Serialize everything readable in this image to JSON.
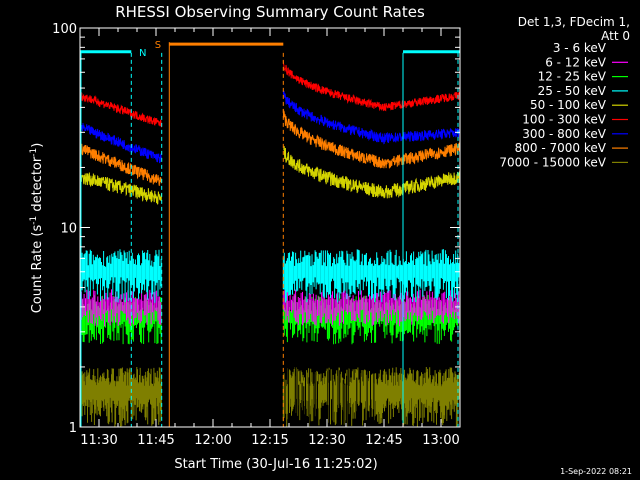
{
  "chart_data": {
    "type": "line",
    "title": "RHESSI Observing Summary Count Rates",
    "xlabel": "Start Time (30-Jul-16 11:25:02)",
    "ylabel_main": "Count Rate (s",
    "ylabel_sup": "-1",
    "ylabel_tail": " detector",
    "ylabel_sup2": "-1",
    "ylabel_close": ")",
    "yscale": "log",
    "ylim": [
      1,
      100
    ],
    "xlim_minutes": [
      0,
      100
    ],
    "x_ticks": [
      {
        "m": 5,
        "label": "11:30"
      },
      {
        "m": 20,
        "label": "11:45"
      },
      {
        "m": 35,
        "label": "12:00"
      },
      {
        "m": 50,
        "label": "12:15"
      },
      {
        "m": 65,
        "label": "12:30"
      },
      {
        "m": 80,
        "label": "12:45"
      },
      {
        "m": 95,
        "label": "13:00"
      }
    ],
    "y_ticks": [
      {
        "v": 1,
        "label": "1"
      },
      {
        "v": 10,
        "label": "10"
      },
      {
        "v": 100,
        "label": "100"
      }
    ],
    "legend_header": [
      "Det 1,3, FDecim 1,",
      "Att 0"
    ],
    "series": [
      {
        "name": "3 - 6 keV",
        "color": "#000000"
      },
      {
        "name": "6 - 12 keV",
        "color": "#ff00ff"
      },
      {
        "name": "12 - 25 keV",
        "color": "#00ff00"
      },
      {
        "name": "25 - 50 keV",
        "color": "#00ffff"
      },
      {
        "name": "50 - 100 keV",
        "color": "#d4d400"
      },
      {
        "name": "100 - 300 keV",
        "color": "#ff0000"
      },
      {
        "name": "300 - 800 keV",
        "color": "#0000ff"
      },
      {
        "name": "800 - 7000 keV",
        "color": "#ff7f00"
      },
      {
        "name": "7000 - 15000 keV",
        "color": "#7f7f00"
      }
    ],
    "segments": [
      [
        0,
        21.5
      ],
      [
        53.5,
        100
      ]
    ],
    "flags": [
      {
        "label": "N",
        "color": "#00ffff",
        "ranges": [
          [
            0,
            13.5
          ],
          [
            85,
            100
          ]
        ]
      },
      {
        "label": "S",
        "color": "#ff7f00",
        "ranges": [
          [
            23.5,
            53.5
          ]
        ]
      }
    ]
  },
  "timestamp": "1-Sep-2022 08:21"
}
